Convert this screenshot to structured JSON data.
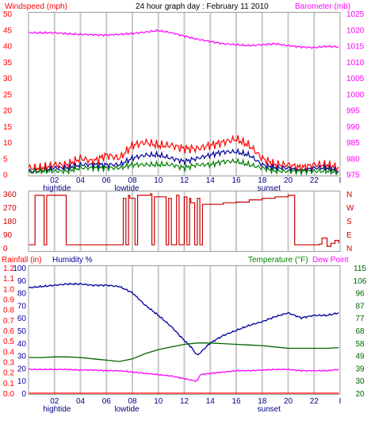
{
  "chart_data": [
    {
      "type": "line",
      "title": "24 hour graph day : February 11 2010",
      "left_axis_label": "Windspeed (mph)",
      "right_axis_label": "Barometer (mb)",
      "left_ticks": [
        "0",
        "5",
        "10",
        "15",
        "20",
        "25",
        "30",
        "35",
        "40",
        "45",
        "50"
      ],
      "left_range": [
        0,
        50
      ],
      "right_ticks": [
        "975",
        "980",
        "985",
        "990",
        "995",
        "1000",
        "1005",
        "1010",
        "1015",
        "1020",
        "1025"
      ],
      "right_range": [
        975,
        1025
      ],
      "x_ticks": [
        "02",
        "04",
        "06",
        "08",
        "10",
        "12",
        "14",
        "16",
        "18",
        "20",
        "22",
        "I"
      ],
      "x_range": [
        0,
        24
      ],
      "markers": [
        {
          "label": "hightide",
          "hour": 1.0
        },
        {
          "label": "lowtide",
          "hour": 6.5
        },
        {
          "label": "sunset",
          "hour": 17.5
        }
      ],
      "series": [
        {
          "axis": "right",
          "color": "#ff00ff",
          "x": [
            0,
            1,
            2,
            3,
            4,
            5,
            6,
            7,
            8,
            9,
            10,
            11,
            12,
            13,
            14,
            15,
            16,
            17,
            18,
            19,
            20,
            21,
            22,
            23,
            23.9
          ],
          "values": [
            1019,
            1019,
            1019,
            1018.7,
            1018.5,
            1018.4,
            1018.3,
            1018.5,
            1018.8,
            1019.2,
            1019.7,
            1019,
            1018,
            1017,
            1016.3,
            1015.6,
            1015.3,
            1015,
            1015.3,
            1015.6,
            1015,
            1014.6,
            1014.4,
            1014.8,
            1014.6
          ]
        },
        {
          "axis": "left",
          "color": "#ff0000",
          "x": [
            0,
            1,
            2,
            3,
            4,
            5,
            6,
            7,
            8,
            9,
            10,
            11,
            12,
            13,
            14,
            15,
            16,
            17,
            18,
            19,
            20,
            21,
            22,
            23,
            23.9
          ],
          "values": [
            2,
            2,
            3,
            3,
            5,
            4,
            6,
            5,
            9,
            10,
            9,
            9,
            8,
            8,
            9,
            10,
            11,
            9,
            5,
            3,
            3,
            2,
            3,
            3,
            2
          ]
        },
        {
          "axis": "left",
          "color": "#000099",
          "x": [
            0,
            1,
            2,
            3,
            4,
            5,
            6,
            7,
            8,
            9,
            10,
            11,
            12,
            13,
            14,
            15,
            16,
            17,
            18,
            19,
            20,
            21,
            22,
            23,
            23.9
          ],
          "values": [
            1,
            1,
            2,
            2,
            3,
            3,
            3,
            3,
            5,
            6,
            6,
            5,
            4,
            5,
            6,
            7,
            7,
            6,
            3,
            2,
            2,
            1,
            2,
            2,
            1
          ]
        },
        {
          "axis": "left",
          "color": "#008000",
          "x": [
            0,
            1,
            2,
            3,
            4,
            5,
            6,
            7,
            8,
            9,
            10,
            11,
            12,
            13,
            14,
            15,
            16,
            17,
            18,
            19,
            20,
            21,
            22,
            23,
            23.9
          ],
          "values": [
            0.5,
            1,
            1,
            1,
            2,
            2,
            2,
            2,
            3,
            3,
            3,
            3,
            2,
            3,
            3,
            4,
            4,
            3,
            2,
            1,
            1,
            1,
            1,
            1,
            0.5
          ]
        }
      ]
    },
    {
      "type": "line",
      "left_ticks": [
        "0",
        "90",
        "180",
        "270",
        "360"
      ],
      "left_range": [
        0,
        360
      ],
      "right_ticks": [
        "N",
        "W",
        "S",
        "E",
        "N"
      ],
      "x_range": [
        0,
        24
      ],
      "series": [
        {
          "axis": "left",
          "color": "#cc0000",
          "x": [
            0,
            0.4,
            0.5,
            1.1,
            1.2,
            1.4,
            2.8,
            2.9,
            3.1,
            7,
            7.3,
            7.5,
            7.7,
            7.8,
            8.2,
            8.4,
            8.6,
            9.4,
            9.5,
            9.7,
            10.6,
            10.8,
            11,
            11.4,
            11.6,
            12,
            12.2,
            12.4,
            12.5,
            12.8,
            13,
            13.2,
            13.4,
            14,
            15,
            16,
            17,
            18,
            19,
            20,
            20.4,
            20.5,
            20.8,
            21,
            22,
            22.4,
            22.6,
            23,
            23.3,
            23.6,
            23.9
          ],
          "values": [
            20,
            20,
            350,
            350,
            20,
            350,
            350,
            20,
            20,
            20,
            330,
            20,
            350,
            330,
            20,
            350,
            350,
            360,
            20,
            340,
            20,
            330,
            20,
            350,
            20,
            340,
            20,
            330,
            300,
            20,
            330,
            20,
            290,
            290,
            300,
            305,
            320,
            330,
            340,
            350,
            350,
            20,
            20,
            20,
            20,
            25,
            65,
            10,
            30,
            50,
            30
          ]
        }
      ]
    },
    {
      "type": "line",
      "rain_label": "Rainfall (in)",
      "humidity_label": "Humidity %",
      "temp_label": "Temperature (°F)",
      "dew_label": "Dew Point",
      "rain_ticks": [
        "0.0",
        "0.1",
        "0.2",
        "0.3",
        "0.4",
        "0.5",
        "0.6",
        "0.7",
        "0.8",
        "0.9",
        "1.0",
        "1.1",
        "1.2"
      ],
      "humidity_ticks": [
        "0",
        "10",
        "20",
        "30",
        "40",
        "50",
        "60",
        "70",
        "80",
        "90",
        "100"
      ],
      "humidity_range": [
        0,
        100
      ],
      "temp_ticks": [
        "20",
        "30",
        "39",
        "49",
        "58",
        "68",
        "77",
        "87",
        "96",
        "106",
        "115"
      ],
      "temp_range": [
        20,
        115
      ],
      "x_ticks": [
        "02",
        "04",
        "06",
        "08",
        "10",
        "12",
        "14",
        "16",
        "18",
        "20",
        "22",
        "I"
      ],
      "x_range": [
        0,
        24
      ],
      "markers": [
        {
          "label": "hightide",
          "hour": 1.0
        },
        {
          "label": "lowtide",
          "hour": 6.5
        },
        {
          "label": "sunset",
          "hour": 17.5
        }
      ],
      "series": [
        {
          "name": "Humidity %",
          "axis": "humidity",
          "color": "#00009c",
          "x": [
            0,
            1,
            2,
            3,
            4,
            5,
            6,
            7,
            8,
            9,
            10,
            11,
            12,
            12.5,
            13,
            14,
            15,
            16,
            17,
            18,
            19,
            20,
            21,
            22,
            23,
            23.9
          ],
          "values": [
            84,
            85,
            86,
            87,
            87,
            86,
            86,
            85,
            80,
            70,
            62,
            53,
            42,
            37,
            30,
            40,
            46,
            50,
            54,
            57,
            61,
            64,
            60,
            62,
            62,
            64
          ]
        },
        {
          "name": "Temperature (°F)",
          "axis": "temp",
          "color": "#006400",
          "x": [
            0,
            1,
            2,
            3,
            4,
            5,
            6,
            7,
            8,
            9,
            10,
            11,
            12,
            13,
            14,
            15,
            16,
            17,
            18,
            19,
            20,
            21,
            22,
            23,
            23.9
          ],
          "values": [
            47,
            47,
            47.5,
            47.5,
            47,
            46,
            45,
            44,
            46,
            50,
            53,
            55,
            57,
            58,
            58,
            57.5,
            57,
            56.5,
            56,
            55,
            54,
            54,
            54,
            54,
            54.5
          ]
        },
        {
          "name": "Dew Point",
          "axis": "temp",
          "color": "#ff00ff",
          "x": [
            0,
            1,
            2,
            3,
            4,
            5,
            6,
            7,
            8,
            9,
            10,
            11,
            12,
            12.5,
            13,
            13.2,
            14,
            15,
            16,
            17,
            18,
            19,
            20,
            21,
            22,
            23,
            23.9
          ],
          "values": [
            38,
            38,
            38,
            38,
            37.5,
            37.5,
            37,
            37,
            36,
            35,
            34,
            33,
            31,
            30,
            29,
            34,
            35,
            36,
            37,
            37,
            37.5,
            38,
            38,
            37,
            37,
            37,
            38
          ]
        },
        {
          "name": "Rainfall (in)",
          "axis": "humidity",
          "color": "#ff0000",
          "x": [
            0,
            23.9
          ],
          "values": [
            0,
            0
          ]
        }
      ]
    }
  ],
  "colors": {
    "red": "#ff0000",
    "magenta": "#ff00ff",
    "navy": "#00009c",
    "green": "#008000",
    "darkgreen": "#006400",
    "grid": "#c8c8c8",
    "border": "#9c9c9c"
  }
}
